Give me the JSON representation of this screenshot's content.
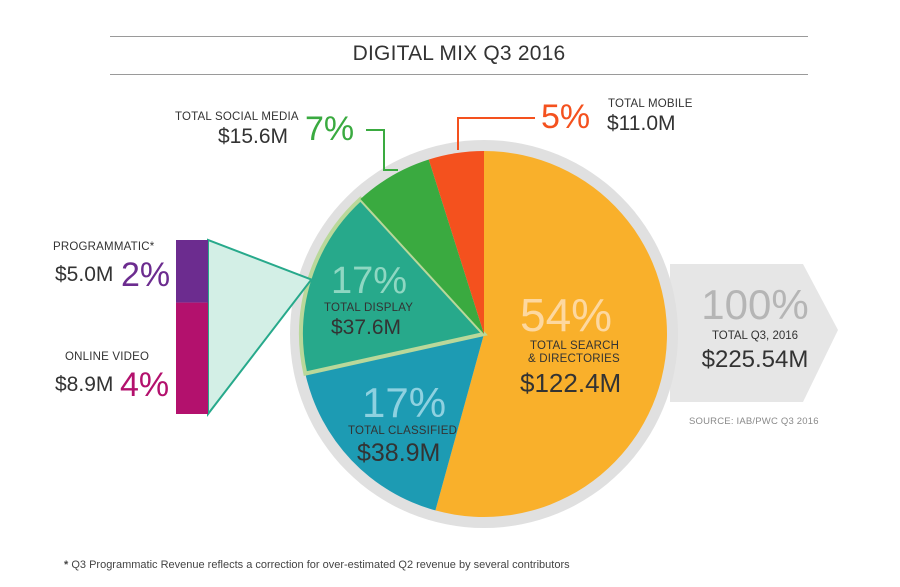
{
  "title": "DIGITAL MIX Q3 2016",
  "source": "SOURCE: IAB/PWC Q3 2016",
  "footnote": "Q3 Programmatic Revenue reflects a correction for over-estimated Q2 revenue by several contributors",
  "footnote_marker": "*",
  "total": {
    "percent": "100%",
    "label": "TOTAL Q3, 2016",
    "value": "$225.54M"
  },
  "chart_data": {
    "type": "pie",
    "title": "DIGITAL MIX Q3 2016",
    "unit": "$M",
    "total": 225.54,
    "slices": [
      {
        "key": "search",
        "label": "TOTAL SEARCH & DIRECTORIES",
        "label_lines": [
          "TOTAL SEARCH",
          "& DIRECTORIES"
        ],
        "value": 122.4,
        "percent": 54,
        "value_text": "$122.4M",
        "percent_text": "54%",
        "color": "#f9b02b"
      },
      {
        "key": "classified",
        "label": "TOTAL CLASSIFIED",
        "value": 38.9,
        "percent": 17,
        "value_text": "$38.9M",
        "percent_text": "17%",
        "color": "#1d9bb3"
      },
      {
        "key": "display",
        "label": "TOTAL DISPLAY",
        "value": 37.6,
        "percent": 17,
        "value_text": "$37.6M",
        "percent_text": "17%",
        "color": "#27a98b"
      },
      {
        "key": "social",
        "label": "TOTAL SOCIAL MEDIA",
        "value": 15.6,
        "percent": 7,
        "value_text": "$15.6M",
        "percent_text": "7%",
        "color": "#3aaa40"
      },
      {
        "key": "mobile",
        "label": "TOTAL MOBILE",
        "value": 11.0,
        "percent": 5,
        "value_text": "$11.0M",
        "percent_text": "5%",
        "color": "#f4511e"
      }
    ],
    "breakout": {
      "of": "display",
      "items": [
        {
          "key": "programmatic",
          "label": "PROGRAMMATIC*",
          "value": 5.0,
          "percent": 2,
          "value_text": "$5.0M",
          "percent_text": "2%",
          "color": "#6c2c8f"
        },
        {
          "key": "video",
          "label": "ONLINE VIDEO",
          "value": 8.9,
          "percent": 4,
          "value_text": "$8.9M",
          "percent_text": "4%",
          "color": "#b3116d"
        }
      ]
    }
  }
}
